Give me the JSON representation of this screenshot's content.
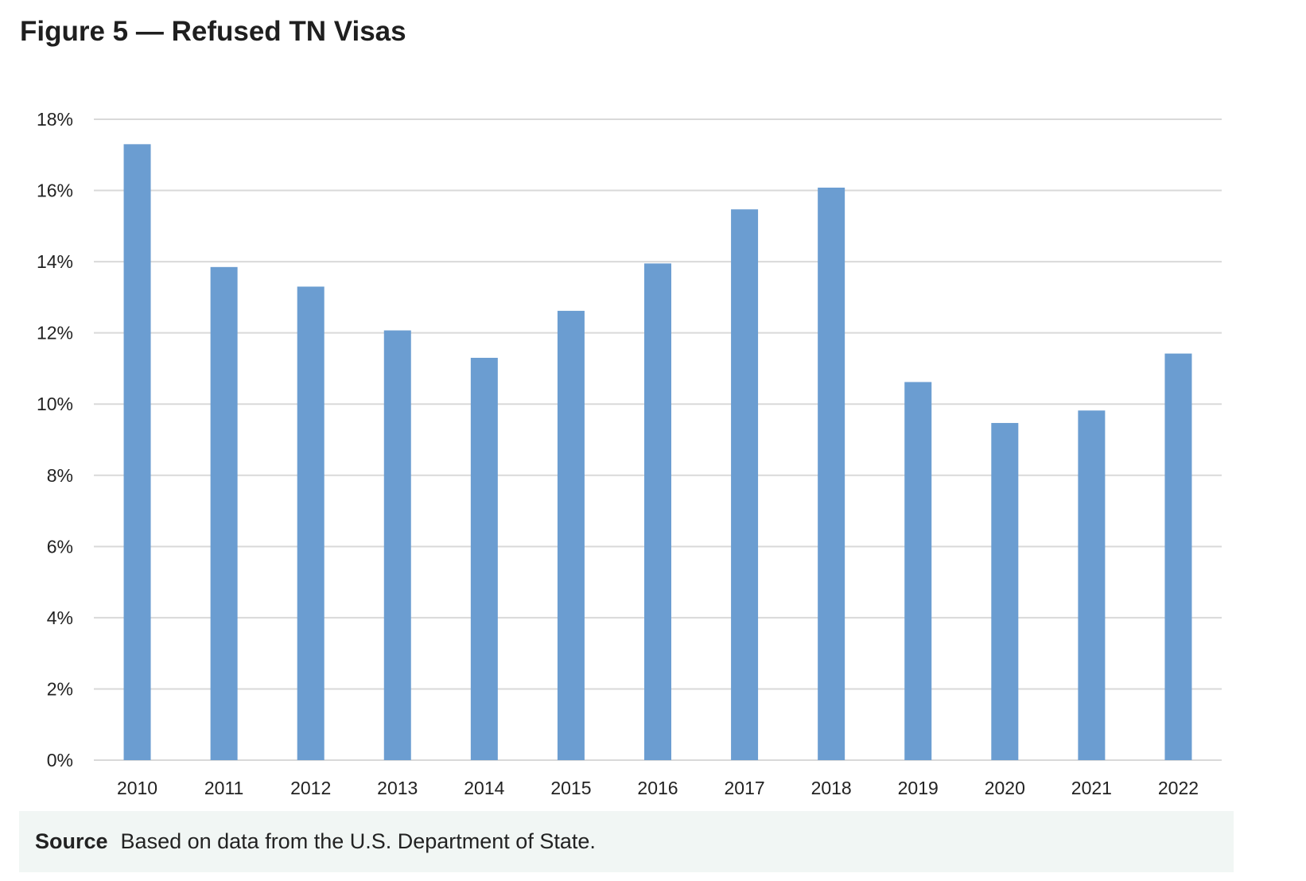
{
  "figure": {
    "title": "Figure 5 — Refused TN Visas"
  },
  "source": {
    "label": "Source",
    "text": "Based on data from the U.S. Department of State."
  },
  "chart_data": {
    "type": "bar",
    "title": "Figure 5 — Refused TN Visas",
    "xlabel": "",
    "ylabel": "",
    "categories": [
      "2010",
      "2011",
      "2012",
      "2013",
      "2014",
      "2015",
      "2016",
      "2017",
      "2018",
      "2019",
      "2020",
      "2021",
      "2022"
    ],
    "values": [
      17.3,
      13.85,
      13.3,
      12.07,
      11.3,
      12.62,
      13.95,
      15.47,
      16.08,
      10.62,
      9.47,
      9.82,
      11.42
    ],
    "value_unit": "%",
    "ylim": [
      0,
      18
    ],
    "yticks": [
      "0%",
      "2%",
      "4%",
      "6%",
      "8%",
      "10%",
      "12%",
      "14%",
      "16%",
      "18%"
    ],
    "ytick_values": [
      0,
      2,
      4,
      6,
      8,
      10,
      12,
      14,
      16,
      18
    ],
    "grid": true,
    "legend": "none",
    "bar_color": "#6b9dd1",
    "grid_color": "#d9d9d9"
  }
}
